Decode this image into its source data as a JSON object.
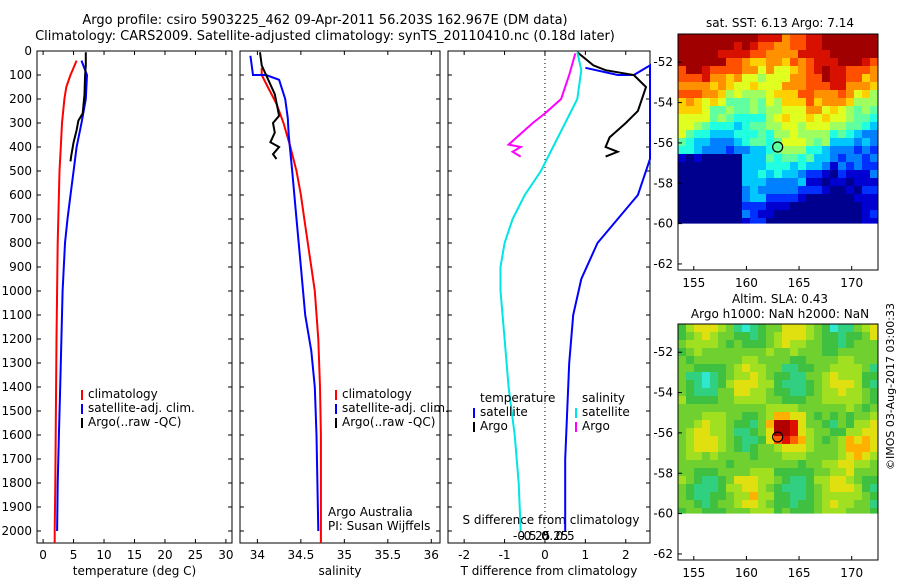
{
  "header": {
    "line1": "Argo profile: csiro 5903225_462 09-Apr-2011 56.203S 162.967E (DM data)",
    "line2": "Climatology: CARS2009. Satellite-adjusted climatology: synTS_20110410.nc (0.18d later)"
  },
  "colors": {
    "climatology": "#ff0000",
    "satellite": "#0000ff",
    "argo": "#000000",
    "s_satellite": "#00e5e5",
    "s_argo": "#ff00ff"
  },
  "depth_axis": {
    "ylim": [
      0,
      2050
    ],
    "ticks": [
      0,
      100,
      200,
      300,
      400,
      500,
      600,
      700,
      800,
      900,
      1000,
      1100,
      1200,
      1300,
      1400,
      1500,
      1600,
      1700,
      1800,
      1900,
      2000
    ]
  },
  "chart_data": [
    {
      "type": "line",
      "xlabel": "temperature (deg C)",
      "xlim": [
        -1,
        31
      ],
      "xticks": [
        0,
        5,
        10,
        15,
        20,
        25,
        30
      ],
      "legend": [
        "climatology",
        "satellite-adj. clim.",
        "Argo(..raw -QC)"
      ],
      "series": [
        {
          "name": "climatology",
          "color": "#ff0000",
          "points": [
            [
              5.5,
              40
            ],
            [
              5.0,
              70
            ],
            [
              4.5,
              100
            ],
            [
              3.8,
              150
            ],
            [
              3.5,
              200
            ],
            [
              3.1,
              300
            ],
            [
              2.9,
              400
            ],
            [
              2.7,
              500
            ],
            [
              2.6,
              600
            ],
            [
              2.5,
              700
            ],
            [
              2.4,
              800
            ],
            [
              2.3,
              1000
            ],
            [
              2.2,
              1200
            ],
            [
              2.1,
              1500
            ],
            [
              2.0,
              1800
            ],
            [
              1.9,
              2000
            ],
            [
              1.9,
              2050
            ]
          ]
        },
        {
          "name": "satellite-adj. clim.",
          "color": "#0000ff",
          "points": [
            [
              6.3,
              40
            ],
            [
              6.6,
              60
            ],
            [
              7.2,
              100
            ],
            [
              7.0,
              200
            ],
            [
              6.3,
              300
            ],
            [
              5.5,
              400
            ],
            [
              5.0,
              500
            ],
            [
              4.5,
              600
            ],
            [
              4.0,
              700
            ],
            [
              3.6,
              800
            ],
            [
              3.4,
              900
            ],
            [
              3.2,
              1000
            ],
            [
              3.0,
              1200
            ],
            [
              2.8,
              1400
            ],
            [
              2.6,
              1600
            ],
            [
              2.4,
              1800
            ],
            [
              2.3,
              2000
            ]
          ]
        },
        {
          "name": "Argo(..raw -QC)",
          "color": "#000000",
          "points": [
            [
              7.0,
              5
            ],
            [
              7.0,
              60
            ],
            [
              6.9,
              100
            ],
            [
              6.8,
              180
            ],
            [
              6.5,
              260
            ],
            [
              5.8,
              290
            ],
            [
              5.5,
              330
            ],
            [
              5.0,
              380
            ],
            [
              4.6,
              440
            ],
            [
              4.5,
              460
            ]
          ]
        }
      ]
    },
    {
      "type": "line",
      "xlabel": "salinity",
      "xlim": [
        33.8,
        36.1
      ],
      "xticks": [
        34,
        34.5,
        35,
        35.5,
        36
      ],
      "legend": [
        "climatology",
        "satellite-adj. clim.",
        "Argo(..raw -QC)"
      ],
      "credit": [
        "Argo Australia",
        "PI: Susan Wijffels"
      ],
      "series": [
        {
          "name": "climatology",
          "color": "#ff0000",
          "points": [
            [
              34.05,
              70
            ],
            [
              34.05,
              100
            ],
            [
              34.12,
              150
            ],
            [
              34.22,
              220
            ],
            [
              34.3,
              300
            ],
            [
              34.38,
              400
            ],
            [
              34.45,
              500
            ],
            [
              34.5,
              600
            ],
            [
              34.54,
              700
            ],
            [
              34.58,
              800
            ],
            [
              34.62,
              900
            ],
            [
              34.66,
              1000
            ],
            [
              34.7,
              1200
            ],
            [
              34.72,
              1400
            ],
            [
              34.73,
              1600
            ],
            [
              34.73,
              1800
            ],
            [
              34.73,
              2050
            ]
          ]
        },
        {
          "name": "satellite-adj. clim.",
          "color": "#0000ff",
          "points": [
            [
              33.92,
              20
            ],
            [
              33.95,
              100
            ],
            [
              34.1,
              100
            ],
            [
              34.25,
              120
            ],
            [
              34.32,
              200
            ],
            [
              34.35,
              280
            ],
            [
              34.36,
              350
            ],
            [
              34.4,
              500
            ],
            [
              34.45,
              700
            ],
            [
              34.5,
              900
            ],
            [
              34.55,
              1100
            ],
            [
              34.62,
              1250
            ],
            [
              34.66,
              1400
            ],
            [
              34.68,
              1600
            ],
            [
              34.69,
              1800
            ],
            [
              34.7,
              2000
            ]
          ]
        },
        {
          "name": "Argo(..raw -QC)",
          "color": "#000000",
          "points": [
            [
              34.03,
              5
            ],
            [
              34.05,
              60
            ],
            [
              34.1,
              100
            ],
            [
              34.2,
              180
            ],
            [
              34.25,
              270
            ],
            [
              34.18,
              300
            ],
            [
              34.2,
              340
            ],
            [
              34.15,
              380
            ],
            [
              34.25,
              400
            ],
            [
              34.18,
              430
            ],
            [
              34.22,
              450
            ]
          ]
        }
      ]
    },
    {
      "type": "line",
      "xlabel_top": "S difference from climatology",
      "xticks_top": [
        -0.5,
        -0.25,
        0,
        0.25,
        0.5
      ],
      "xlabel": "T difference from climatology",
      "xlim": [
        -2.4,
        2.6
      ],
      "xticks": [
        -2,
        -1,
        0,
        1,
        2
      ],
      "legend_cols": [
        {
          "title": "temperature",
          "items": [
            "satellite",
            "Argo"
          ]
        },
        {
          "title": "salinity",
          "items": [
            "satellite",
            "Argo"
          ]
        }
      ],
      "series": [
        {
          "name": "T satellite",
          "color": "#0000ff",
          "points": [
            [
              1.0,
              70
            ],
            [
              1.8,
              100
            ],
            [
              2.2,
              100
            ],
            [
              2.6,
              60
            ],
            [
              2.6,
              450
            ],
            [
              2.3,
              600
            ],
            [
              1.8,
              700
            ],
            [
              1.3,
              800
            ],
            [
              0.9,
              950
            ],
            [
              0.7,
              1100
            ],
            [
              0.6,
              1300
            ],
            [
              0.55,
              1500
            ],
            [
              0.5,
              1700
            ],
            [
              0.5,
              1900
            ],
            [
              0.5,
              2000
            ]
          ]
        },
        {
          "name": "T Argo",
          "color": "#000000",
          "points": [
            [
              0.8,
              5
            ],
            [
              1.2,
              60
            ],
            [
              1.5,
              80
            ],
            [
              2.2,
              100
            ],
            [
              2.5,
              150
            ],
            [
              2.3,
              250
            ],
            [
              2.0,
              300
            ],
            [
              1.6,
              360
            ],
            [
              1.5,
              400
            ],
            [
              1.8,
              420
            ],
            [
              1.5,
              440
            ]
          ]
        },
        {
          "name": "S satellite",
          "color": "#00e5e5",
          "points": [
            [
              0.8,
              5
            ],
            [
              0.9,
              80
            ],
            [
              0.8,
              200
            ],
            [
              0.5,
              300
            ],
            [
              0.2,
              400
            ],
            [
              -0.1,
              500
            ],
            [
              -0.5,
              600
            ],
            [
              -0.8,
              700
            ],
            [
              -1.0,
              800
            ],
            [
              -1.1,
              900
            ],
            [
              -1.1,
              1000
            ],
            [
              -1.0,
              1200
            ],
            [
              -0.9,
              1400
            ],
            [
              -0.75,
              1600
            ],
            [
              -0.65,
              1800
            ],
            [
              -0.6,
              2000
            ]
          ]
        },
        {
          "name": "S Argo",
          "color": "#ff00ff",
          "points": [
            [
              0.75,
              10
            ],
            [
              0.6,
              100
            ],
            [
              0.4,
              200
            ],
            [
              0.0,
              260
            ],
            [
              -0.3,
              300
            ],
            [
              -0.7,
              360
            ],
            [
              -0.9,
              390
            ],
            [
              -0.6,
              400
            ],
            [
              -0.8,
              420
            ],
            [
              -0.6,
              440
            ]
          ]
        }
      ]
    },
    {
      "type": "heatmap",
      "title": "sat. SST: 6.13 Argo: 7.14",
      "xlim": [
        153.5,
        172.5
      ],
      "ylim": [
        -62.3,
        -50.6
      ],
      "xticks": [
        155,
        160,
        165,
        170
      ],
      "yticks": [
        -52,
        -54,
        -56,
        -58,
        -60,
        -62
      ],
      "marker": [
        162.967,
        -56.203
      ]
    },
    {
      "type": "heatmap",
      "title": [
        "Altim. SLA: 0.43",
        "Argo h1000: NaN h2000: NaN"
      ],
      "xlim": [
        153.5,
        172.5
      ],
      "ylim": [
        -62.3,
        -50.6
      ],
      "xticks": [
        155,
        160,
        165,
        170
      ],
      "yticks": [
        -52,
        -54,
        -56,
        -58,
        -60,
        -62
      ],
      "marker": [
        162.967,
        -56.203
      ]
    }
  ],
  "credit_text": "©IMOS 03-Aug-2017 03:00:33"
}
